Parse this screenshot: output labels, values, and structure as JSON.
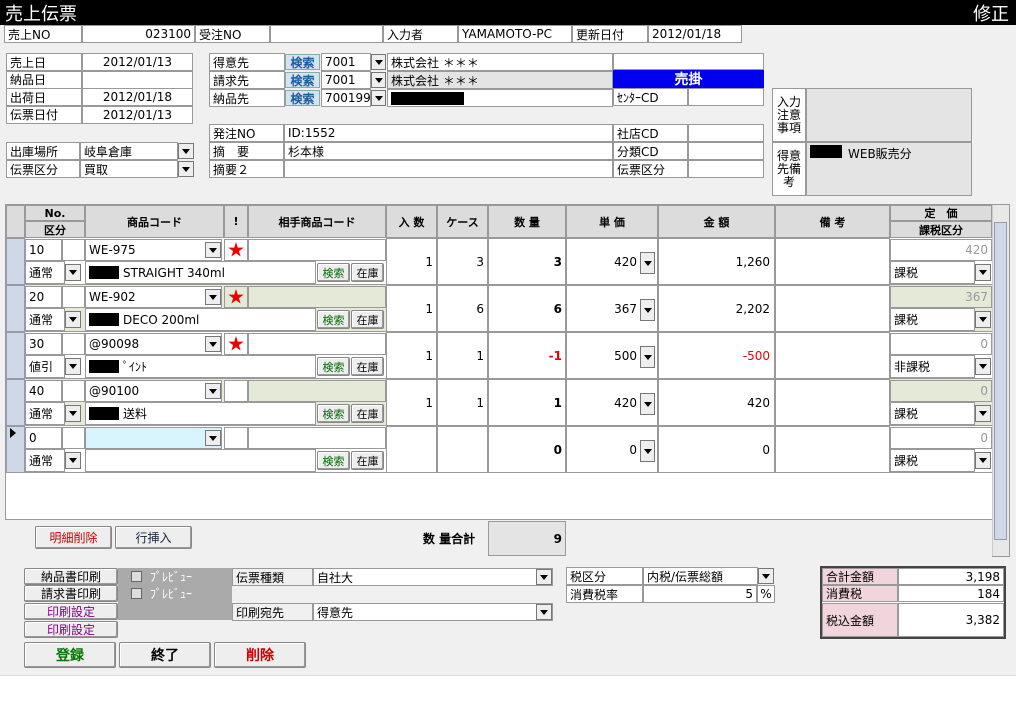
{
  "header": {
    "title": "売上伝票",
    "mode": "修正"
  },
  "top_row": [
    {
      "label": "売上NO",
      "value": "023100"
    },
    {
      "label": "受注NO"
    },
    {
      "label": "入力者",
      "value": "YAMAMOTO-PC"
    },
    {
      "label": "更新日付",
      "value": "2012/01/18"
    }
  ],
  "dates": [
    {
      "label": "売上日",
      "value": "2012/01/13"
    },
    {
      "label": "納品日"
    },
    {
      "label": "出荷日",
      "value": "2012/01/18"
    },
    {
      "label": "伝票日付",
      "value": "2012/01/13"
    }
  ],
  "warehouse": [
    {
      "label": "出庫場所",
      "value": "岐阜倉庫"
    },
    {
      "label": "伝票区分",
      "value": "買取"
    }
  ],
  "parties": {
    "search": "検索",
    "rows": [
      {
        "label": "得意先",
        "code": "7001",
        "name": "株式会社 ＊＊＊"
      },
      {
        "label": "請求先",
        "code": "7001",
        "name": "株式会社 ＊＊＊"
      },
      {
        "label": "納品先",
        "code": "700199",
        "redacted": true
      }
    ]
  },
  "status": "売掛",
  "center_cd_label": "ｾﾝﾀｰCD",
  "order": [
    {
      "label": "発注NO",
      "value": "ID:1552"
    },
    {
      "label": "摘　要",
      "value": "杉本様"
    },
    {
      "label": "摘要２"
    }
  ],
  "codes": [
    {
      "label": "社店CD"
    },
    {
      "label": "分類CD"
    },
    {
      "label": "伝票区分"
    }
  ],
  "notes": [
    {
      "label": "入力注意事項"
    },
    {
      "label": "得意先備考",
      "value": "WEB販売分",
      "redacted": true
    }
  ],
  "table": {
    "columns": [
      {
        "label": "No.",
        "sub": "区分"
      },
      {
        "label": "商品コード"
      },
      {
        "label": "!"
      },
      {
        "label": "相手商品コード"
      },
      {
        "label": "入 数"
      },
      {
        "label": "ケース"
      },
      {
        "label": "数 量"
      },
      {
        "label": "単 価"
      },
      {
        "label": "金 額"
      },
      {
        "label": "備 考"
      },
      {
        "label": "定　価",
        "sub": "課税区分"
      }
    ],
    "buttons": {
      "search": "検索",
      "stock": "在庫"
    },
    "rows": [
      {
        "no": "10",
        "kubun": "通常",
        "code": "WE-975",
        "star": true,
        "name": "STRAIGHT 340ml",
        "redacted": true,
        "irisu": "1",
        "case": "3",
        "qty": "3",
        "price": "420",
        "amount": "1,260",
        "list_price": "420",
        "tax": "課税"
      },
      {
        "no": "20",
        "kubun": "通常",
        "code": "WE-902",
        "star": true,
        "name": "DECO 200ml",
        "redacted": true,
        "irisu": "1",
        "case": "6",
        "qty": "6",
        "price": "367",
        "amount": "2,202",
        "list_price": "367",
        "tax": "課税"
      },
      {
        "no": "30",
        "kubun": "値引",
        "code": "@90098",
        "star": true,
        "name": "ﾟｲﾝﾄ",
        "redacted": true,
        "irisu": "1",
        "case": "1",
        "qty": "-1",
        "price": "500",
        "amount": "-500",
        "list_price": "0",
        "tax": "非課税"
      },
      {
        "no": "40",
        "kubun": "通常",
        "code": "@90100",
        "star": false,
        "name": "送料",
        "redacted": true,
        "irisu": "1",
        "case": "1",
        "qty": "1",
        "price": "420",
        "amount": "420",
        "list_price": "0",
        "tax": "課税"
      },
      {
        "no": "0",
        "kubun": "通常",
        "star": false,
        "redacted": false,
        "qty": "0",
        "price": "0",
        "amount": "0",
        "list_price": "0",
        "tax": "課税"
      }
    ],
    "actions": [
      "明細削除",
      "行挿入"
    ],
    "total_label": "数 量合計",
    "total": "9"
  },
  "print": {
    "buttons": [
      "納品書印刷",
      "請求書印刷",
      "印刷設定",
      "印刷設定"
    ],
    "preview": "ﾌﾟﾚﾋﾞｭｰ",
    "fields": [
      {
        "label": "伝票種類",
        "value": "自社大"
      },
      {
        "label": "印刷宛先",
        "value": "得意先"
      }
    ]
  },
  "tax": {
    "fields": [
      {
        "label": "税区分",
        "value": "内税/伝票総額"
      },
      {
        "label": "消費税率",
        "value": "5"
      }
    ],
    "unit": "%"
  },
  "totals": [
    {
      "label": "合計金額",
      "value": "3,198"
    },
    {
      "label": "消費税",
      "value": "184"
    },
    {
      "label": "税込金額",
      "value": "3,382"
    }
  ],
  "commands": [
    "登録",
    "終了",
    "削除"
  ]
}
